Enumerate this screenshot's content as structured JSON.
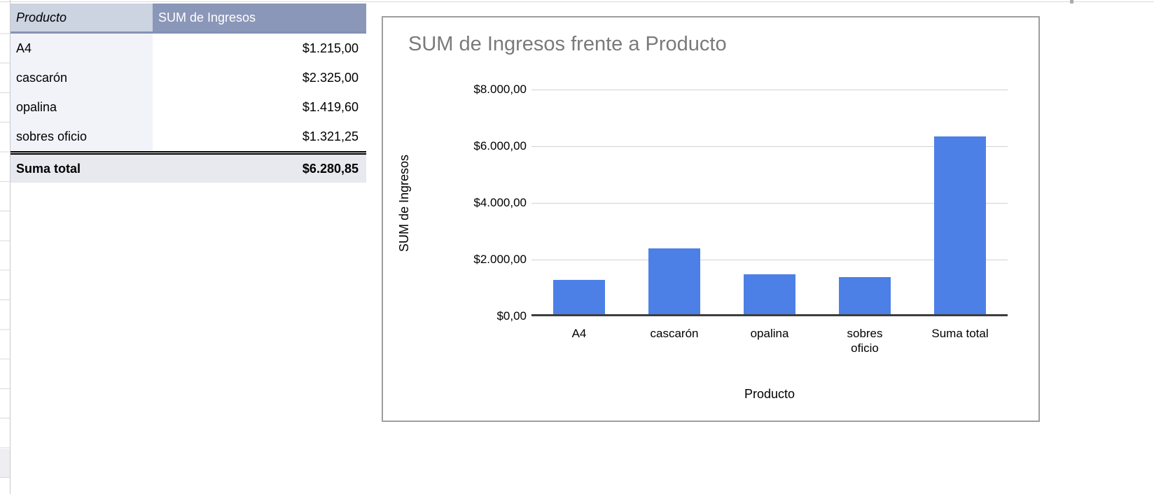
{
  "pivot_table": {
    "columns": {
      "product": "Producto",
      "value": "SUM de Ingresos"
    },
    "rows": [
      {
        "product": "A4",
        "value": "$1.215,00"
      },
      {
        "product": "cascarón",
        "value": "$2.325,00"
      },
      {
        "product": "opalina",
        "value": "$1.419,60"
      },
      {
        "product": "sobres oficio",
        "value": "$1.321,25"
      }
    ],
    "total": {
      "product": "Suma total",
      "value": "$6.280,85"
    }
  },
  "chart_data": {
    "type": "bar",
    "title": "SUM de Ingresos frente a Producto",
    "categories": [
      "A4",
      "cascarón",
      "opalina",
      "sobres oficio",
      "Suma total"
    ],
    "categories_display": [
      [
        "A4"
      ],
      [
        "cascarón"
      ],
      [
        "opalina"
      ],
      [
        "sobres",
        "oficio"
      ],
      [
        "Suma total"
      ]
    ],
    "values": [
      1215,
      2325,
      1419.6,
      1321.25,
      6280.85
    ],
    "value_labels": [
      "$1.215,00",
      "$2.325,00",
      "$1.419,60",
      "$1.321,25",
      "$6.280,85"
    ],
    "xlabel": "Producto",
    "ylabel": "SUM de Ingresos",
    "ylim": [
      0,
      8000
    ],
    "yticks": [
      8000,
      6000,
      4000,
      2000,
      0
    ],
    "ytick_labels": [
      "$8.000,00",
      "$6.000,00",
      "$4.000,00",
      "$2.000,00",
      "$0,00"
    ],
    "bar_color": "#4d80e6",
    "grid": true,
    "legend_position": "none",
    "title_color": "#7a7a7a"
  }
}
